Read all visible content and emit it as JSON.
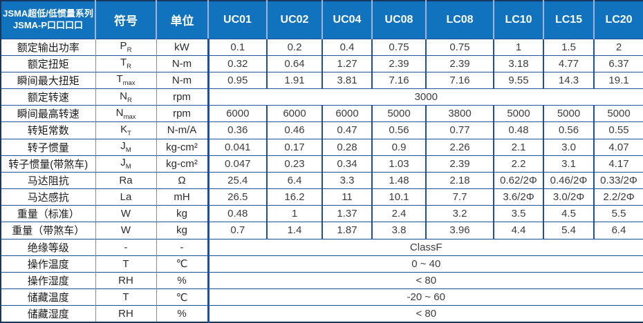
{
  "header": {
    "series_title_line1": "JSMA超低/低惯量系列",
    "series_title_line2": "JSMA-P口口口口",
    "symbol_col_label": "符号",
    "unit_col_label": "单位",
    "models": [
      "UC01",
      "UC02",
      "UC04",
      "UC08",
      "LC08",
      "LC10",
      "LC15",
      "LC20"
    ]
  },
  "rows": [
    {
      "label": "额定输出功率",
      "symbol": {
        "main": "P",
        "sub": "R"
      },
      "unit": "kW",
      "values": [
        "0.1",
        "0.2",
        "0.4",
        "0.75",
        "0.75",
        "1",
        "1.5",
        "2"
      ]
    },
    {
      "label": "额定扭矩",
      "symbol": {
        "main": "T",
        "sub": "R"
      },
      "unit": "N-m",
      "values": [
        "0.32",
        "0.64",
        "1.27",
        "2.39",
        "2.39",
        "3.18",
        "4.77",
        "6.37"
      ]
    },
    {
      "label": "瞬间最大扭矩",
      "symbol": {
        "main": "T",
        "sub": "max"
      },
      "unit": "N-m",
      "values": [
        "0.95",
        "1.91",
        "3.81",
        "7.16",
        "7.16",
        "9.55",
        "14.3",
        "19.1"
      ]
    },
    {
      "label": "额定转速",
      "symbol": {
        "main": "N",
        "sub": "R"
      },
      "unit": "rpm",
      "span_value": "3000"
    },
    {
      "label": "瞬间最高转速",
      "symbol": {
        "main": "N",
        "sub": "max"
      },
      "unit": "rpm",
      "values": [
        "6000",
        "6000",
        "6000",
        "5000",
        "3800",
        "5000",
        "5000",
        "5000"
      ]
    },
    {
      "label": "转矩常数",
      "symbol": {
        "main": "K",
        "sub": "T"
      },
      "unit": "N-m/A",
      "values": [
        "0.36",
        "0.46",
        "0.47",
        "0.56",
        "0.77",
        "0.48",
        "0.56",
        "0.55"
      ]
    },
    {
      "label": "转子惯量",
      "symbol": {
        "main": "J",
        "sub": "M"
      },
      "unit": "kg-cm²",
      "values": [
        "0.041",
        "0.17",
        "0.28",
        "0.9",
        "2.26",
        "2.1",
        "3.0",
        "4.07"
      ]
    },
    {
      "label": "转子惯量(带煞车)",
      "symbol": {
        "main": "J",
        "sub": "M"
      },
      "unit": "kg-cm²",
      "values": [
        "0.047",
        "0.23",
        "0.34",
        "1.03",
        "2.39",
        "2.2",
        "3.1",
        "4.17"
      ]
    },
    {
      "label": "马达阻抗",
      "symbol": {
        "main": "Ra",
        "sub": ""
      },
      "unit": "Ω",
      "values": [
        "25.4",
        "6.4",
        "3.3",
        "1.48",
        "2.18",
        "0.62/2Φ",
        "0.46/2Φ",
        "0.33/2Φ"
      ]
    },
    {
      "label": "马达感抗",
      "symbol": {
        "main": "La",
        "sub": ""
      },
      "unit": "mH",
      "values": [
        "26.5",
        "16.2",
        "11",
        "10.1",
        "7.7",
        "3.6/2Φ",
        "3.0/2Φ",
        "2.2/2Φ"
      ]
    },
    {
      "label": "重量（标准）",
      "symbol": {
        "main": "W",
        "sub": ""
      },
      "unit": "kg",
      "values": [
        "0.48",
        "1",
        "1.37",
        "2.4",
        "3.2",
        "3.5",
        "4.5",
        "5.5"
      ]
    },
    {
      "label": "重量（带煞车）",
      "symbol": {
        "main": "W",
        "sub": ""
      },
      "unit": "kg",
      "values": [
        "0.7",
        "1.4",
        "1.87",
        "3.8",
        "3.96",
        "4.4",
        "5.4",
        "6.4"
      ]
    },
    {
      "label": "绝缘等级",
      "symbol": {
        "main": "-",
        "sub": ""
      },
      "unit": "-",
      "span_value": "ClassF"
    },
    {
      "label": "操作温度",
      "symbol": {
        "main": "T",
        "sub": ""
      },
      "unit": "℃",
      "span_value": "0 ~ 40"
    },
    {
      "label": "操作湿度",
      "symbol": {
        "main": "RH",
        "sub": ""
      },
      "unit": "%",
      "span_value": "< 80"
    },
    {
      "label": "储藏温度",
      "symbol": {
        "main": "T",
        "sub": ""
      },
      "unit": "℃",
      "span_value": "-20 ~ 60"
    },
    {
      "label": "储藏湿度",
      "symbol": {
        "main": "RH",
        "sub": ""
      },
      "unit": "%",
      "span_value": "< 80"
    }
  ],
  "colors": {
    "header_bg": "#1173BD",
    "header_divider": "#9FB3D9",
    "grid_line": "#1E4F9C",
    "outer_border": "#17375E",
    "value_text": "#3C3C3C"
  }
}
